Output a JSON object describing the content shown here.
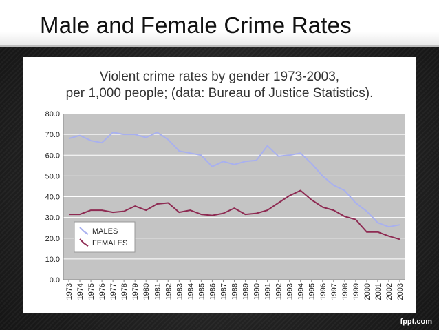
{
  "slide": {
    "title": "Male and Female Crime Rates",
    "footer": "fppt.com"
  },
  "colors": {
    "males": "#a8b0f0",
    "females": "#8e2a52",
    "plot_bg": "#c4c4c4",
    "grid": "#ffffff"
  },
  "chart_data": {
    "type": "line",
    "title": "Violent crime rates by gender 1973-2003,",
    "subtitle": "per 1,000 people; (data: Bureau of Justice Statistics).",
    "xlabel": "",
    "ylabel": "",
    "ylim": [
      0,
      80
    ],
    "y_ticks": [
      "0.0",
      "10.0",
      "20.0",
      "30.0",
      "40.0",
      "50.0",
      "60.0",
      "70.0",
      "80.0"
    ],
    "grid": true,
    "legend_position": "bottom-left",
    "x": [
      "1973",
      "1974",
      "1975",
      "1976",
      "1977",
      "1978",
      "1979",
      "1980",
      "1981",
      "1982",
      "1983",
      "1984",
      "1985",
      "1986",
      "1987",
      "1988",
      "1989",
      "1990",
      "1991",
      "1992",
      "1993",
      "1994",
      "1995",
      "1996",
      "1997",
      "1998",
      "1999",
      "2000",
      "2001",
      "2002",
      "2003"
    ],
    "series": [
      {
        "name": "MALES",
        "values": [
          68.0,
          69.5,
          67.0,
          66.0,
          71.0,
          70.0,
          70.0,
          68.5,
          71.0,
          67.5,
          62.0,
          61.0,
          60.0,
          54.5,
          57.0,
          55.5,
          57.0,
          57.5,
          64.5,
          59.5,
          60.0,
          61.0,
          56.0,
          50.0,
          45.5,
          43.0,
          37.0,
          33.0,
          27.5,
          25.5,
          26.5
        ]
      },
      {
        "name": "FEMALES",
        "values": [
          31.5,
          31.5,
          33.5,
          33.5,
          32.5,
          33.0,
          35.5,
          33.5,
          36.5,
          37.0,
          32.5,
          33.5,
          31.5,
          31.0,
          32.0,
          34.5,
          31.5,
          32.0,
          33.5,
          37.0,
          40.5,
          43.0,
          38.5,
          35.0,
          33.5,
          30.5,
          29.0,
          23.0,
          23.0,
          21.0,
          19.5
        ]
      }
    ]
  }
}
